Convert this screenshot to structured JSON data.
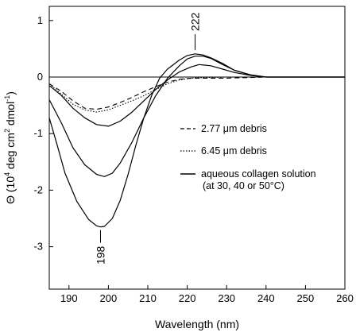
{
  "chart_data": {
    "type": "line",
    "xlabel": "Wavelength (nm)",
    "ylabel_parts": [
      "Θ (10",
      "4",
      " deg cm",
      "2",
      " dmol",
      "-1",
      ")"
    ],
    "xlim": [
      185,
      260
    ],
    "ylim": [
      -3.75,
      1.25
    ],
    "xticks": [
      190,
      200,
      210,
      220,
      230,
      240,
      250,
      260
    ],
    "yticks": [
      1,
      0,
      -1,
      -2,
      -3
    ],
    "legend": {
      "position": "center-right",
      "entries": [
        {
          "label": "2.77 μm debris",
          "style": "dashed"
        },
        {
          "label": "6.45 μm debris",
          "style": "dotted"
        },
        {
          "label": "aqueous collagen solution",
          "label2": "(at 30, 40 or  50°C)",
          "style": "solid"
        }
      ]
    },
    "annotations": [
      {
        "text": "222",
        "x": 222,
        "y": 0.42
      },
      {
        "text": "198",
        "x": 198,
        "y": -2.65
      }
    ],
    "series": [
      {
        "style": "dashed",
        "points": [
          [
            185,
            -0.12
          ],
          [
            188,
            -0.25
          ],
          [
            191,
            -0.42
          ],
          [
            194,
            -0.55
          ],
          [
            197,
            -0.57
          ],
          [
            200,
            -0.53
          ],
          [
            203,
            -0.45
          ],
          [
            206,
            -0.36
          ],
          [
            209,
            -0.26
          ],
          [
            212,
            -0.17
          ],
          [
            215,
            -0.09
          ],
          [
            218,
            -0.04
          ],
          [
            221,
            -0.02
          ],
          [
            224,
            -0.02
          ],
          [
            227,
            -0.02
          ],
          [
            230,
            -0.02
          ],
          [
            235,
            -0.01
          ],
          [
            240,
            0.0
          ],
          [
            250,
            0.0
          ],
          [
            260,
            0.0
          ]
        ]
      },
      {
        "style": "dotted",
        "points": [
          [
            185,
            -0.12
          ],
          [
            188,
            -0.3
          ],
          [
            191,
            -0.48
          ],
          [
            194,
            -0.58
          ],
          [
            197,
            -0.62
          ],
          [
            200,
            -0.58
          ],
          [
            203,
            -0.5
          ],
          [
            206,
            -0.42
          ],
          [
            209,
            -0.33
          ],
          [
            212,
            -0.22
          ],
          [
            215,
            -0.12
          ],
          [
            218,
            -0.05
          ],
          [
            221,
            -0.02
          ],
          [
            224,
            -0.01
          ],
          [
            230,
            0.0
          ],
          [
            240,
            0.0
          ],
          [
            250,
            0.0
          ],
          [
            260,
            0.0
          ]
        ]
      },
      {
        "style": "solid",
        "points": [
          [
            185,
            -0.15
          ],
          [
            188,
            -0.32
          ],
          [
            191,
            -0.55
          ],
          [
            194,
            -0.72
          ],
          [
            197,
            -0.84
          ],
          [
            200,
            -0.87
          ],
          [
            203,
            -0.78
          ],
          [
            206,
            -0.62
          ],
          [
            209,
            -0.42
          ],
          [
            212,
            -0.22
          ],
          [
            215,
            -0.05
          ],
          [
            218,
            0.09
          ],
          [
            221,
            0.18
          ],
          [
            223,
            0.22
          ],
          [
            226,
            0.2
          ],
          [
            229,
            0.14
          ],
          [
            232,
            0.08
          ],
          [
            236,
            0.03
          ],
          [
            240,
            0.0
          ],
          [
            250,
            0.0
          ],
          [
            260,
            0.0
          ]
        ]
      },
      {
        "style": "solid",
        "points": [
          [
            185,
            -0.4
          ],
          [
            188,
            -0.8
          ],
          [
            191,
            -1.25
          ],
          [
            194,
            -1.55
          ],
          [
            197,
            -1.72
          ],
          [
            199,
            -1.76
          ],
          [
            201,
            -1.7
          ],
          [
            203,
            -1.52
          ],
          [
            206,
            -1.15
          ],
          [
            209,
            -0.72
          ],
          [
            212,
            -0.33
          ],
          [
            215,
            -0.02
          ],
          [
            218,
            0.2
          ],
          [
            220,
            0.32
          ],
          [
            222,
            0.37
          ],
          [
            224,
            0.37
          ],
          [
            226,
            0.33
          ],
          [
            229,
            0.22
          ],
          [
            232,
            0.12
          ],
          [
            236,
            0.04
          ],
          [
            240,
            0.0
          ],
          [
            250,
            0.0
          ],
          [
            260,
            0.0
          ]
        ]
      },
      {
        "style": "solid",
        "points": [
          [
            185,
            -0.72
          ],
          [
            187,
            -1.2
          ],
          [
            189,
            -1.7
          ],
          [
            192,
            -2.2
          ],
          [
            195,
            -2.52
          ],
          [
            197,
            -2.63
          ],
          [
            198,
            -2.65
          ],
          [
            199,
            -2.64
          ],
          [
            201,
            -2.5
          ],
          [
            203,
            -2.18
          ],
          [
            205,
            -1.72
          ],
          [
            207,
            -1.2
          ],
          [
            209,
            -0.72
          ],
          [
            211,
            -0.32
          ],
          [
            213,
            -0.02
          ],
          [
            215,
            0.14
          ],
          [
            218,
            0.3
          ],
          [
            220,
            0.38
          ],
          [
            222,
            0.41
          ],
          [
            224,
            0.39
          ],
          [
            226,
            0.34
          ],
          [
            229,
            0.24
          ],
          [
            232,
            0.12
          ],
          [
            236,
            0.04
          ],
          [
            240,
            0.0
          ],
          [
            250,
            0.0
          ],
          [
            260,
            0.0
          ]
        ]
      }
    ]
  }
}
